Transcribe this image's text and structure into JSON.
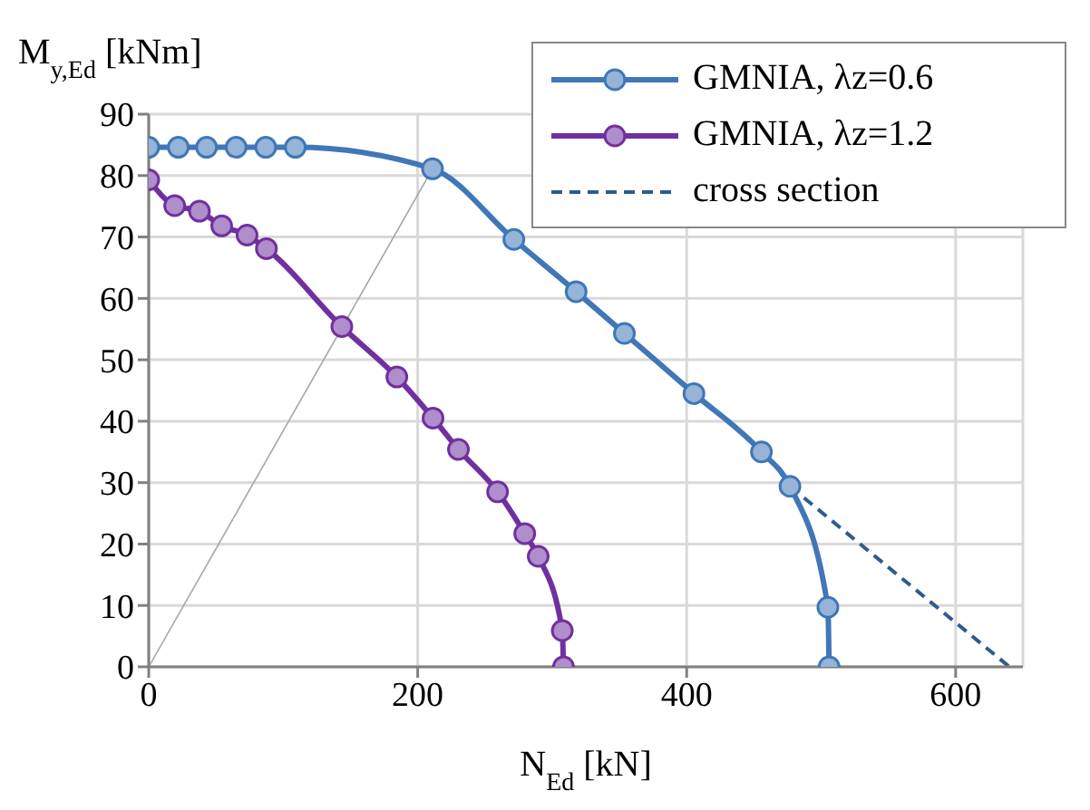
{
  "chart_data": {
    "type": "line",
    "xlabel": "N$_{Ed}$ [kN]",
    "ylabel": "M$_{y,Ed}$ [kNm]",
    "xlim": [
      0,
      650
    ],
    "xticks": [
      0,
      200,
      400,
      600
    ],
    "ylim": [
      0,
      90
    ],
    "yticks": [
      0,
      10,
      20,
      30,
      40,
      50,
      60,
      70,
      80,
      90
    ],
    "grid": true,
    "legend": "top right",
    "marker": "circle",
    "line_style": "solid",
    "series": [
      {
        "name": "GMNIA, λz=0.6",
        "color": "#3f77b8",
        "x": [
          0,
          22,
          43,
          65,
          87,
          109,
          211,
          271.5,
          317.8,
          353.7,
          405.4,
          455.6,
          476.8,
          505,
          505.9
        ],
        "values": [
          84.6,
          84.6,
          84.6,
          84.6,
          84.6,
          84.6,
          81.1,
          69.6,
          61.1,
          54.3,
          44.5,
          35.0,
          29.4,
          9.7,
          0
        ]
      },
      {
        "name": "GMNIA, λz=1.2",
        "color": "#7030a0",
        "x": [
          0,
          19.3,
          37.7,
          54.3,
          73.1,
          87.5,
          143.6,
          184.5,
          211.4,
          230.3,
          259.4,
          279.6,
          289.6,
          307.5,
          308.4
        ],
        "values": [
          79.3,
          75.1,
          74.2,
          71.8,
          70.3,
          68.1,
          55.4,
          47.2,
          40.5,
          35.4,
          28.5,
          21.7,
          18.0,
          5.9,
          0
        ]
      },
      {
        "name": "cross section",
        "color": "#2e5b8e",
        "line_style": "dashed",
        "marker": "none",
        "x": [
          476.8,
          640
        ],
        "values": [
          29.4,
          0
        ]
      },
      {
        "color": "#a6a6a6",
        "marker": "none",
        "x": [
          0,
          211
        ],
        "values": [
          0,
          81.1
        ]
      }
    ]
  }
}
